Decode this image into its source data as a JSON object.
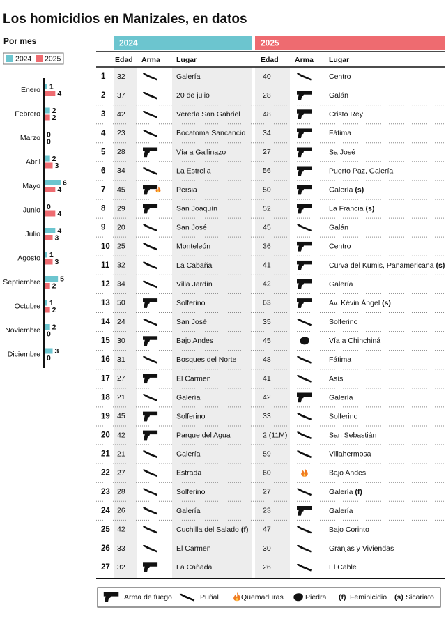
{
  "title": "Los homicidios en Manizales, en datos",
  "chart_data": {
    "type": "bar",
    "orientation": "horizontal",
    "title": "Por mes",
    "categories": [
      "Enero",
      "Febrero",
      "Marzo",
      "Abril",
      "Mayo",
      "Junio",
      "Julio",
      "Agosto",
      "Septiembre",
      "Octubre",
      "Noviembre",
      "Diciembre"
    ],
    "series": [
      {
        "name": "2024",
        "color": "#6cc5cf",
        "values": [
          1,
          2,
          0,
          2,
          6,
          0,
          4,
          1,
          5,
          1,
          2,
          3
        ]
      },
      {
        "name": "2025",
        "color": "#ee6b70",
        "values": [
          4,
          2,
          0,
          3,
          4,
          4,
          3,
          3,
          2,
          2,
          0,
          0
        ]
      }
    ],
    "xlim": [
      0,
      6
    ]
  },
  "table": {
    "groups": [
      {
        "label": "2024",
        "color": "#6cc5cf"
      },
      {
        "label": "2025",
        "color": "#ee6b70"
      }
    ],
    "columns": [
      "Edad",
      "Arma",
      "Lugar"
    ],
    "rows": [
      {
        "n": 1,
        "y2024": {
          "edad": 32,
          "arma": "Puñal",
          "lugar": "Galería"
        },
        "y2025": {
          "edad": 40,
          "arma": "Puñal",
          "lugar": "Centro"
        }
      },
      {
        "n": 2,
        "y2024": {
          "edad": 37,
          "arma": "Puñal",
          "lugar": "20 de julio"
        },
        "y2025": {
          "edad": 28,
          "arma": "Arma de fuego",
          "lugar": "Galán"
        }
      },
      {
        "n": 3,
        "y2024": {
          "edad": 42,
          "arma": "Puñal",
          "lugar": "Vereda San Gabriel"
        },
        "y2025": {
          "edad": 48,
          "arma": "Arma de fuego",
          "lugar": "Cristo Rey"
        }
      },
      {
        "n": 4,
        "y2024": {
          "edad": 23,
          "arma": "Puñal",
          "lugar": "Bocatoma Sancancio"
        },
        "y2025": {
          "edad": 34,
          "arma": "Arma de fuego",
          "lugar": "Fátima"
        }
      },
      {
        "n": 5,
        "y2024": {
          "edad": 28,
          "arma": "Arma de fuego",
          "lugar": "Vía a Gallinazo"
        },
        "y2025": {
          "edad": 27,
          "arma": "Arma de fuego",
          "lugar": "Sa José"
        }
      },
      {
        "n": 6,
        "y2024": {
          "edad": 34,
          "arma": "Puñal",
          "lugar": "La Estrella"
        },
        "y2025": {
          "edad": 56,
          "arma": "Arma de fuego",
          "lugar": "Puerto Paz, Galería"
        }
      },
      {
        "n": 7,
        "y2024": {
          "edad": 45,
          "arma": [
            "Arma de fuego",
            "Quemaduras"
          ],
          "lugar": "Persia"
        },
        "y2025": {
          "edad": 50,
          "arma": "Arma de fuego",
          "lugar": "Galería",
          "nota": "(s)"
        }
      },
      {
        "n": 8,
        "y2024": {
          "edad": 29,
          "arma": "Arma de fuego",
          "lugar": "San Joaquín"
        },
        "y2025": {
          "edad": 52,
          "arma": "Arma de fuego",
          "lugar": "La Francia",
          "nota": "(s)"
        }
      },
      {
        "n": 9,
        "y2024": {
          "edad": 20,
          "arma": "Puñal",
          "lugar": "San José"
        },
        "y2025": {
          "edad": 45,
          "arma": "Puñal",
          "lugar": "Galán"
        }
      },
      {
        "n": 10,
        "y2024": {
          "edad": 25,
          "arma": "Puñal",
          "lugar": "Monteleón"
        },
        "y2025": {
          "edad": 36,
          "arma": "Arma de fuego",
          "lugar": "Centro"
        }
      },
      {
        "n": 11,
        "y2024": {
          "edad": 32,
          "arma": "Puñal",
          "lugar": "La Cabaña"
        },
        "y2025": {
          "edad": 41,
          "arma": "Arma de fuego",
          "lugar": "Curva del Kumis, Panamericana",
          "nota": "(s)"
        }
      },
      {
        "n": 12,
        "y2024": {
          "edad": 34,
          "arma": "Puñal",
          "lugar": "Villa Jardín"
        },
        "y2025": {
          "edad": 42,
          "arma": "Arma de fuego",
          "lugar": "Galería"
        }
      },
      {
        "n": 13,
        "y2024": {
          "edad": 50,
          "arma": "Arma de fuego",
          "lugar": "Solferino"
        },
        "y2025": {
          "edad": 63,
          "arma": "Arma de fuego",
          "lugar": "Av. Kévin Ángel",
          "nota": "(s)"
        }
      },
      {
        "n": 14,
        "y2024": {
          "edad": 24,
          "arma": "Puñal",
          "lugar": "San José"
        },
        "y2025": {
          "edad": 35,
          "arma": "Puñal",
          "lugar": "Solferino"
        }
      },
      {
        "n": 15,
        "y2024": {
          "edad": 30,
          "arma": "Arma de fuego",
          "lugar": "Bajo Andes"
        },
        "y2025": {
          "edad": 45,
          "arma": "Piedra",
          "lugar": "Vía a Chinchiná"
        }
      },
      {
        "n": 16,
        "y2024": {
          "edad": 31,
          "arma": "Puñal",
          "lugar": "Bosques del Norte"
        },
        "y2025": {
          "edad": 48,
          "arma": "Puñal",
          "lugar": "Fátima"
        }
      },
      {
        "n": 17,
        "y2024": {
          "edad": 27,
          "arma": "Arma de fuego",
          "lugar": "El Carmen"
        },
        "y2025": {
          "edad": 41,
          "arma": "Puñal",
          "lugar": "Asís"
        }
      },
      {
        "n": 18,
        "y2024": {
          "edad": 21,
          "arma": "Puñal",
          "lugar": "Galería"
        },
        "y2025": {
          "edad": 42,
          "arma": "Arma de fuego",
          "lugar": "Galería"
        }
      },
      {
        "n": 19,
        "y2024": {
          "edad": 45,
          "arma": "Arma de fuego",
          "lugar": "Solferino"
        },
        "y2025": {
          "edad": 33,
          "arma": "Puñal",
          "lugar": "Solferino"
        }
      },
      {
        "n": 20,
        "y2024": {
          "edad": 42,
          "arma": "Arma de fuego",
          "lugar": "Parque del Agua"
        },
        "y2025": {
          "edad": "2 (11M)",
          "arma": "Puñal",
          "lugar": "San Sebastián"
        }
      },
      {
        "n": 21,
        "y2024": {
          "edad": 21,
          "arma": "Puñal",
          "lugar": "Galería"
        },
        "y2025": {
          "edad": 59,
          "arma": "Puñal",
          "lugar": "Villahermosa"
        }
      },
      {
        "n": 22,
        "y2024": {
          "edad": 27,
          "arma": "Puñal",
          "lugar": "Estrada"
        },
        "y2025": {
          "edad": 60,
          "arma": "Quemaduras",
          "lugar": "Bajo Andes"
        }
      },
      {
        "n": 23,
        "y2024": {
          "edad": 28,
          "arma": "Puñal",
          "lugar": "Solferino"
        },
        "y2025": {
          "edad": 27,
          "arma": "Puñal",
          "lugar": "Galería",
          "nota": "(f)"
        }
      },
      {
        "n": 24,
        "y2024": {
          "edad": 26,
          "arma": "Puñal",
          "lugar": "Galería"
        },
        "y2025": {
          "edad": 23,
          "arma": "Arma de fuego",
          "lugar": "Galería"
        }
      },
      {
        "n": 25,
        "y2024": {
          "edad": 42,
          "arma": "Puñal",
          "lugar": "Cuchilla del Salado",
          "nota": "(f)"
        },
        "y2025": {
          "edad": 47,
          "arma": "Puñal",
          "lugar": "Bajo Corinto"
        }
      },
      {
        "n": 26,
        "y2024": {
          "edad": 33,
          "arma": "Puñal",
          "lugar": "El Carmen"
        },
        "y2025": {
          "edad": 30,
          "arma": "Puñal",
          "lugar": "Granjas y Viviendas"
        }
      },
      {
        "n": 27,
        "y2024": {
          "edad": 32,
          "arma": "Arma de fuego",
          "lugar": "La Cañada"
        },
        "y2025": {
          "edad": 26,
          "arma": "Puñal",
          "lugar": "El Cable"
        }
      }
    ]
  },
  "legend": {
    "icons": [
      {
        "label": "Arma de fuego"
      },
      {
        "label": "Puñal"
      },
      {
        "label": "Quemaduras"
      },
      {
        "label": "Piedra"
      }
    ],
    "notes": [
      {
        "key": "(f)",
        "label": "Feminicidio"
      },
      {
        "key": "(s)",
        "label": "Sicariato"
      }
    ]
  }
}
